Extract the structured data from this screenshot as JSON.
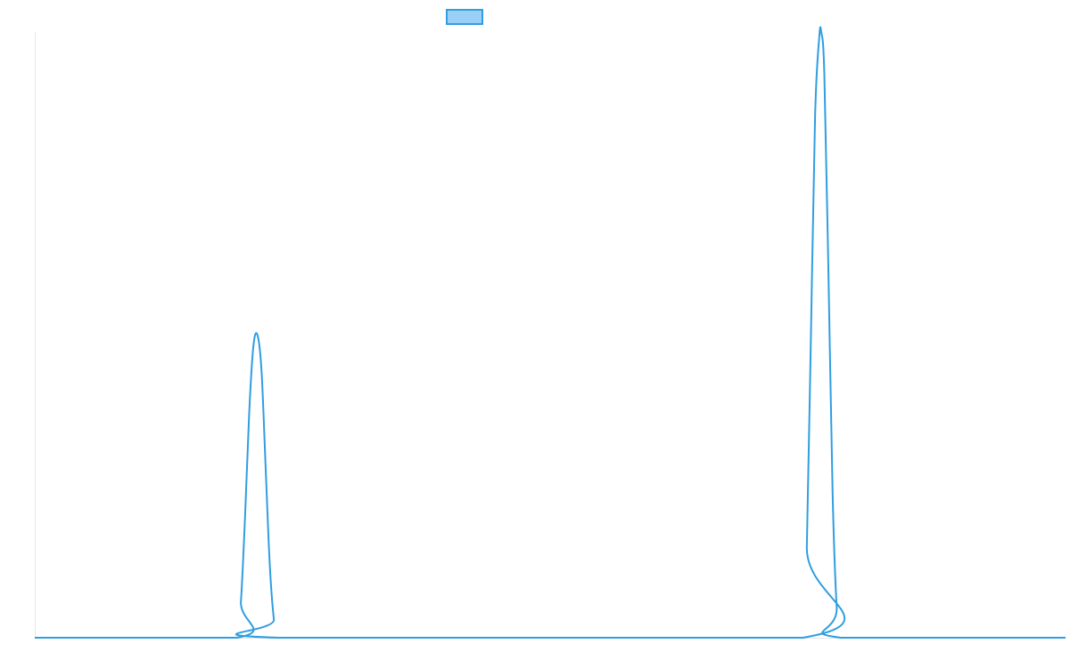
{
  "chart_data": {
    "type": "line",
    "title": "",
    "xlabel": "",
    "ylabel": "",
    "grid": false,
    "legend_placement": "top-center",
    "xlim": [
      0,
      1000
    ],
    "ylim": [
      0,
      100
    ],
    "series": [
      {
        "label": "",
        "color": "#2F9EE0",
        "fill": "#9AD0F5",
        "points": [
          {
            "x": 0,
            "y": 0
          },
          {
            "x": 196,
            "y": 0
          },
          {
            "x": 200,
            "y": 6
          },
          {
            "x": 204,
            "y": 20
          },
          {
            "x": 208,
            "y": 37
          },
          {
            "x": 212,
            "y": 48
          },
          {
            "x": 216,
            "y": 50
          },
          {
            "x": 220,
            "y": 44
          },
          {
            "x": 224,
            "y": 28
          },
          {
            "x": 228,
            "y": 12
          },
          {
            "x": 232,
            "y": 3
          },
          {
            "x": 236,
            "y": 0
          },
          {
            "x": 745,
            "y": 0
          },
          {
            "x": 749,
            "y": 15
          },
          {
            "x": 753,
            "y": 50
          },
          {
            "x": 757,
            "y": 86
          },
          {
            "x": 761,
            "y": 99
          },
          {
            "x": 763,
            "y": 100
          },
          {
            "x": 766,
            "y": 93
          },
          {
            "x": 770,
            "y": 60
          },
          {
            "x": 774,
            "y": 24
          },
          {
            "x": 778,
            "y": 5
          },
          {
            "x": 782,
            "y": 0
          },
          {
            "x": 1000,
            "y": 0
          }
        ]
      }
    ]
  }
}
